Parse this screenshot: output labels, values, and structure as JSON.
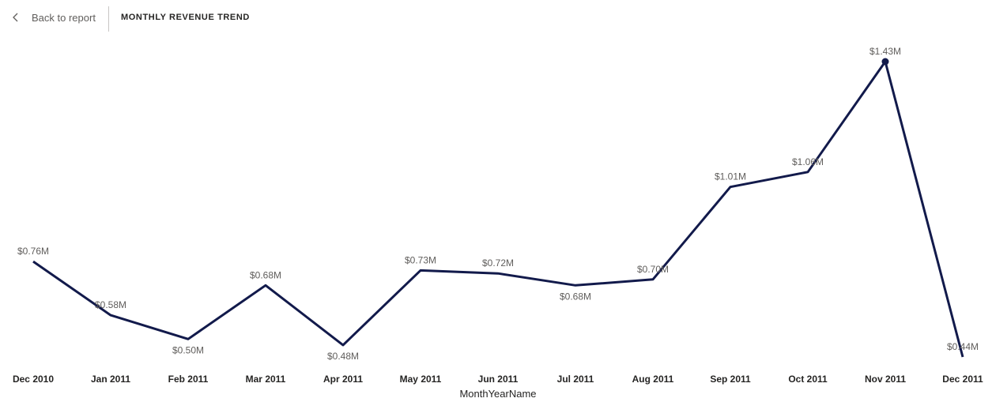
{
  "header": {
    "back_label": "Back to report",
    "back_icon": "chevron-left-icon",
    "title": "MONTHLY REVENUE TREND"
  },
  "chart_data": {
    "type": "line",
    "title": "MONTHLY REVENUE TREND",
    "xlabel": "MonthYearName",
    "ylabel": "",
    "categories": [
      "Dec 2010",
      "Jan 2011",
      "Feb 2011",
      "Mar 2011",
      "Apr 2011",
      "May 2011",
      "Jun 2011",
      "Jul 2011",
      "Aug 2011",
      "Sep 2011",
      "Oct 2011",
      "Nov 2011",
      "Dec 2011"
    ],
    "values": [
      0.76,
      0.58,
      0.5,
      0.68,
      0.48,
      0.73,
      0.72,
      0.68,
      0.7,
      1.01,
      1.06,
      1.43,
      0.44
    ],
    "data_labels": [
      "$0.76M",
      "$0.58M",
      "$0.50M",
      "$0.68M",
      "$0.48M",
      "$0.73M",
      "$0.72M",
      "$0.68M",
      "$0.70M",
      "$1.01M",
      "$1.06M",
      "$1.43M",
      "$0.44M"
    ],
    "unit": "$M",
    "highlighted_point": "Nov 2011",
    "grid": false,
    "legend": "none",
    "colors": {
      "line": "#121A4B",
      "label": "#605e5c",
      "tick": "#252423"
    }
  }
}
